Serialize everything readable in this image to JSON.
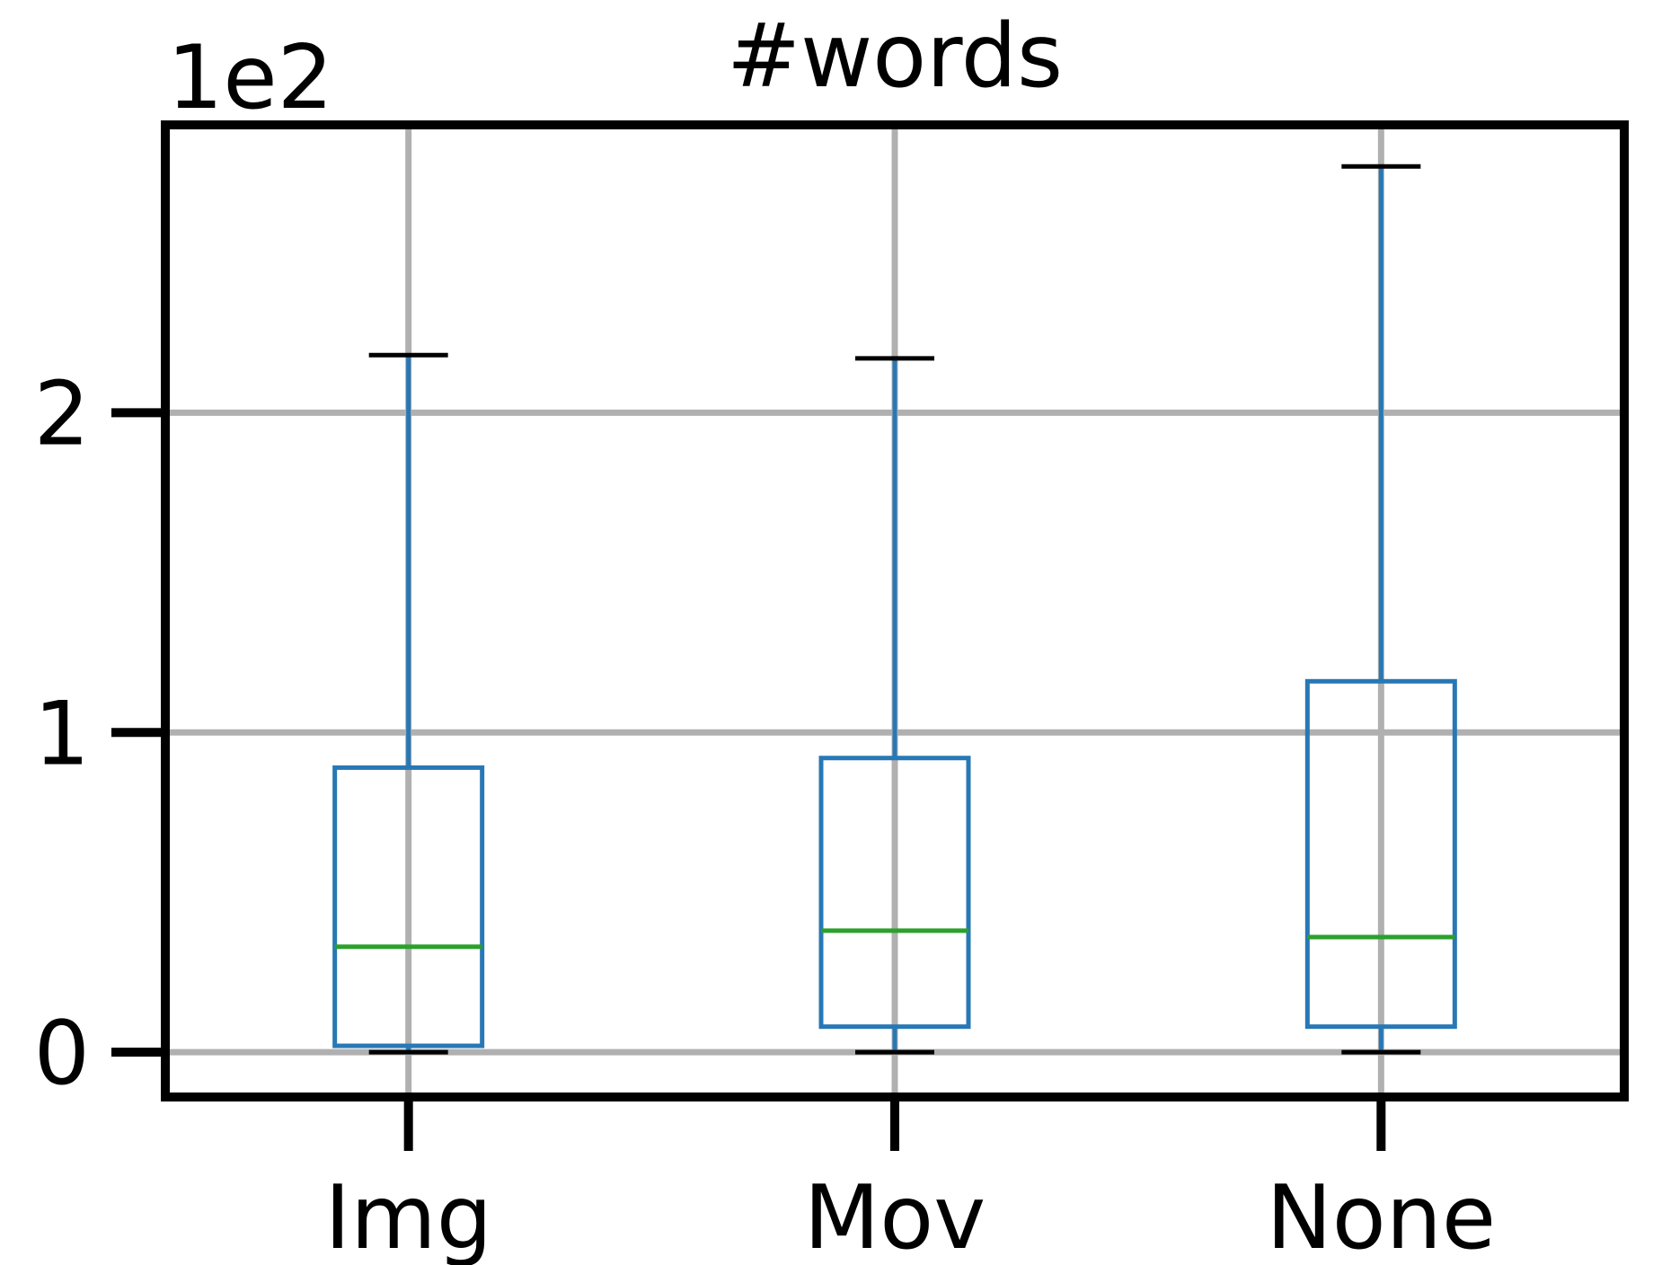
{
  "chart_data": {
    "type": "box",
    "title": "#words",
    "offset_label": "1e2",
    "scale_multiplier": 100,
    "categories": [
      "Img",
      "Mov",
      "None"
    ],
    "y_ticks": [
      0,
      1,
      2
    ],
    "ylim": [
      -0.14,
      2.9
    ],
    "grid": true,
    "boxes": [
      {
        "category": "Img",
        "whislo": 0.0,
        "q1": 0.02,
        "median": 0.33,
        "q3": 0.89,
        "whishi": 2.18
      },
      {
        "category": "Mov",
        "whislo": 0.0,
        "q1": 0.08,
        "median": 0.38,
        "q3": 0.92,
        "whishi": 2.17
      },
      {
        "category": "None",
        "whislo": 0.0,
        "q1": 0.08,
        "median": 0.36,
        "q3": 1.16,
        "whishi": 2.77
      }
    ],
    "colors": {
      "box": "#2878b5",
      "median": "#2ca02c",
      "cap": "#000000",
      "grid": "#b0b0b0",
      "frame": "#000000"
    }
  }
}
